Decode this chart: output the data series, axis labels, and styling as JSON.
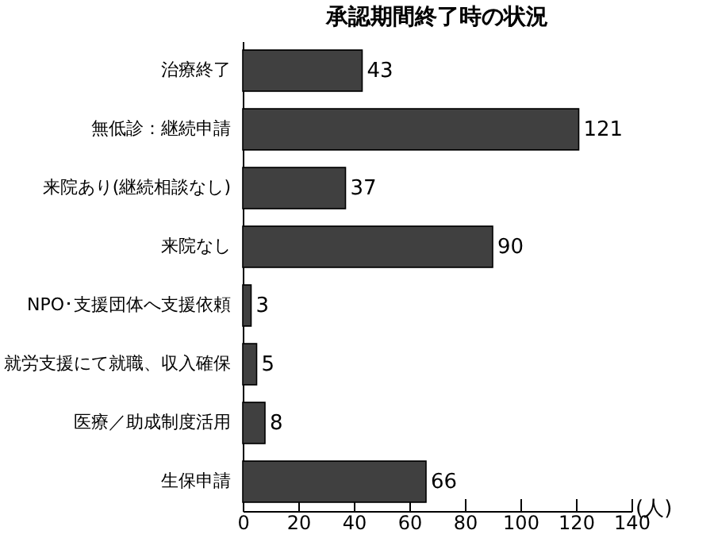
{
  "chart_data": {
    "type": "bar",
    "orientation": "horizontal",
    "title": "承認期間終了時の状況",
    "xlabel": "(人)",
    "categories": [
      "治療終了",
      "無低診：継続申請",
      "来院あり(継続相談なし)",
      "来院なし",
      "NPO･支援団体へ支援依頼",
      "就労支援にて就職、収入確保",
      "医療／助成制度活用",
      "生保申請"
    ],
    "values": [
      43,
      121,
      37,
      90,
      3,
      5,
      8,
      66
    ],
    "color": "#404040",
    "xlim": [
      0,
      140
    ],
    "xticks": [
      0,
      20,
      40,
      60,
      80,
      100,
      120,
      140
    ],
    "data_labels": true,
    "grid": false
  }
}
